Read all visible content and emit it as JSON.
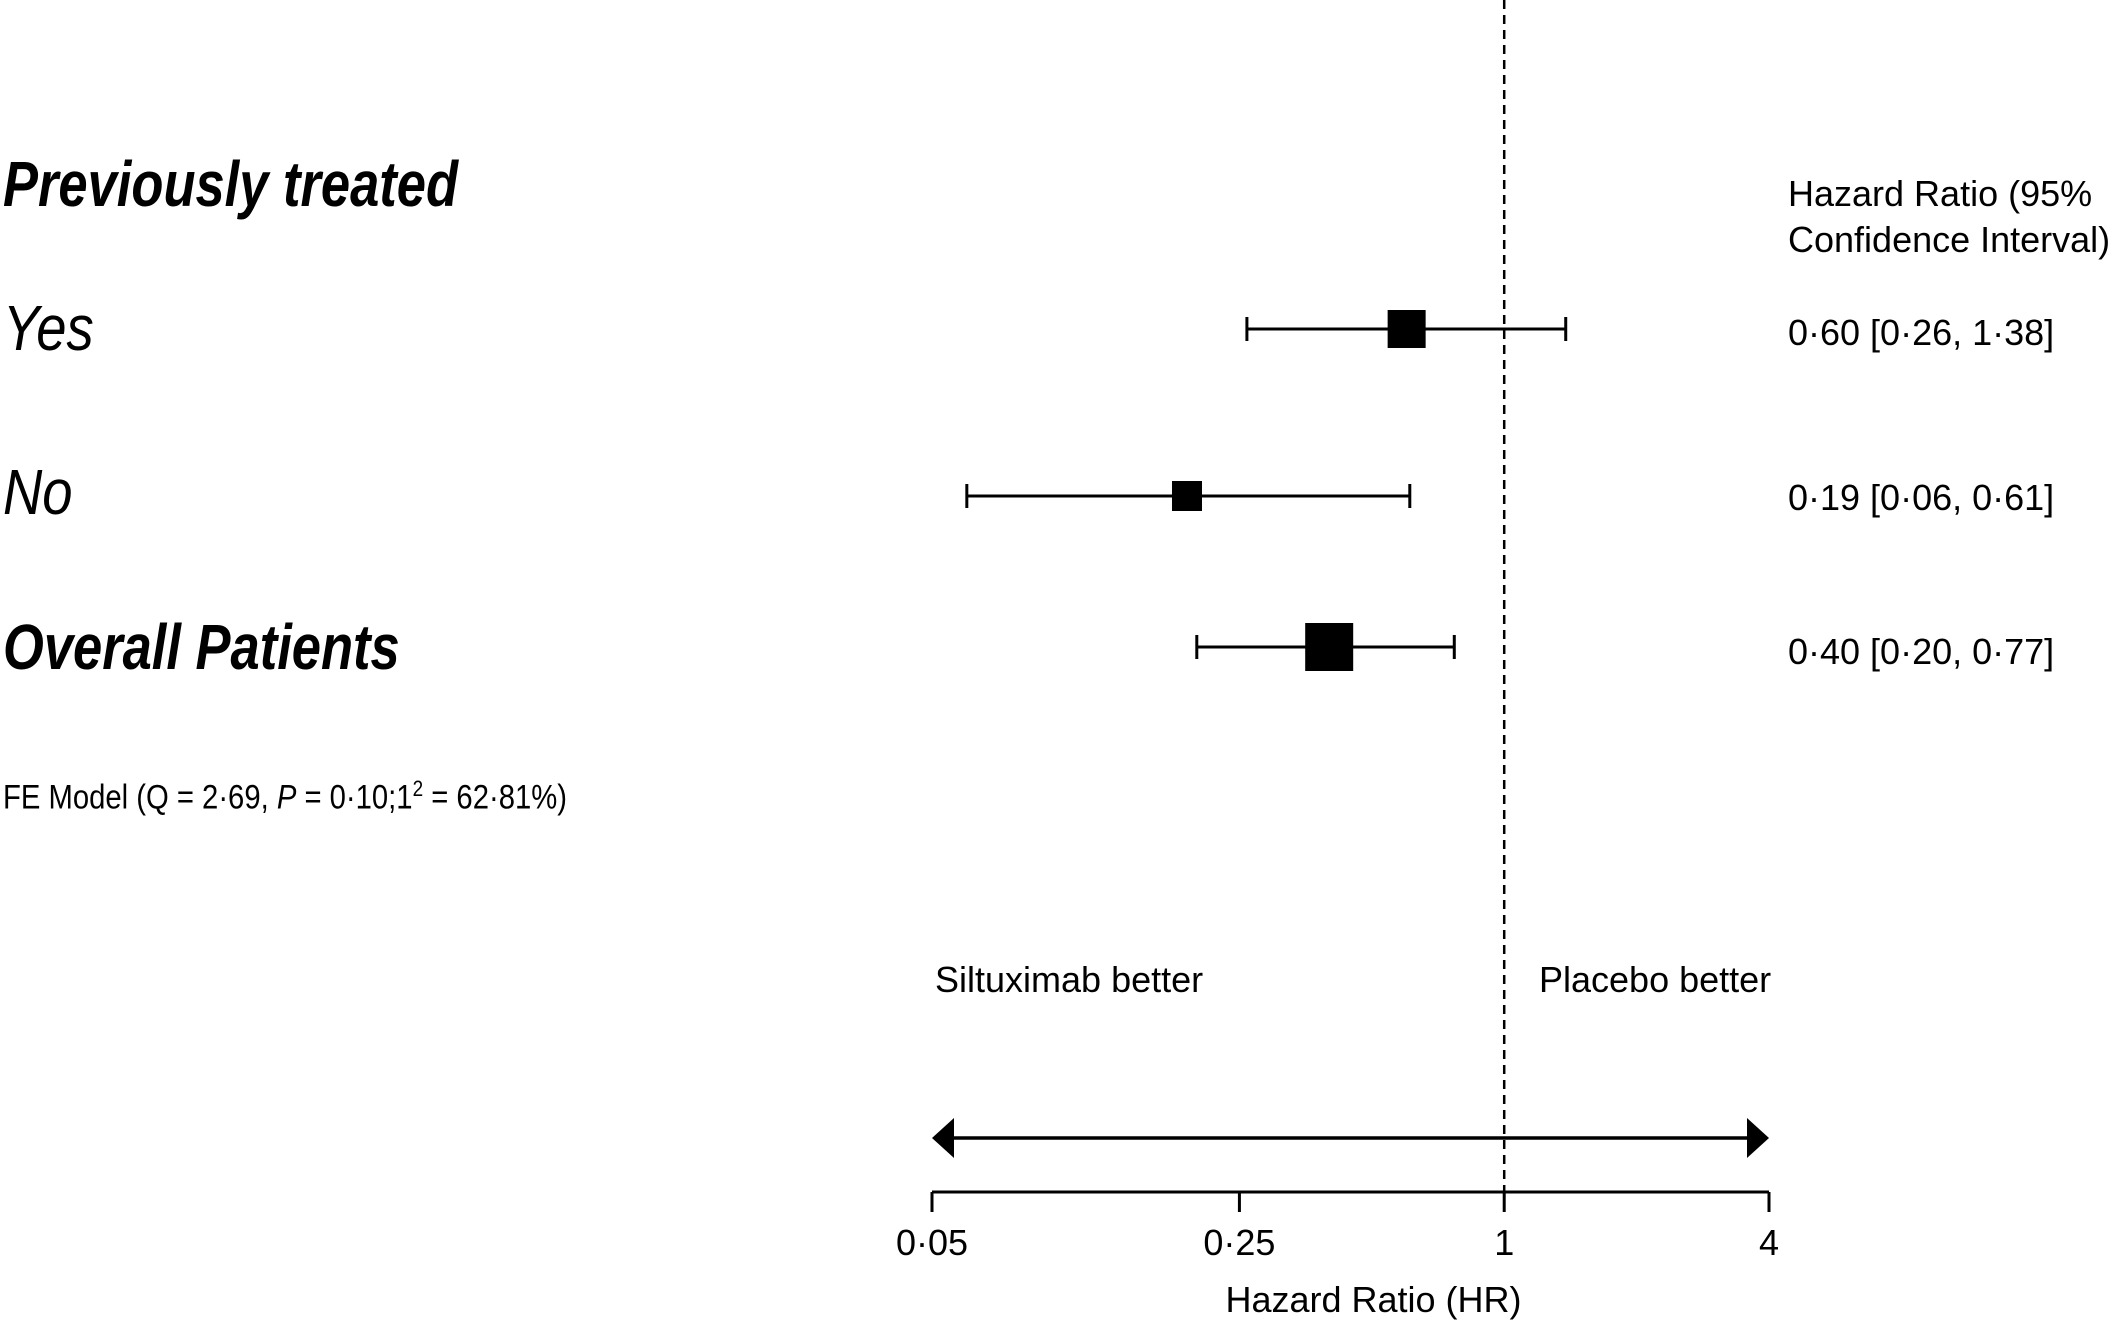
{
  "chart_data": {
    "type": "forest",
    "rows": [
      {
        "label": "Yes",
        "hr": 0.6,
        "ci": [
          0.26,
          1.38
        ],
        "ci_text": "0·60 [0·26, 1·38]",
        "weight": 0.55
      },
      {
        "label": "No",
        "hr": 0.19,
        "ci": [
          0.06,
          0.61
        ],
        "ci_text": "0·19 [0·06, 0·61]",
        "weight": 0.35
      },
      {
        "label": "Overall Patients",
        "hr": 0.4,
        "ci": [
          0.2,
          0.77
        ],
        "ci_text": "0·40 [0·20, 0·77]",
        "weight": 0.8,
        "summary": true
      }
    ],
    "group_header": "Previously treated",
    "column_header": [
      "Hazard Ratio (95%",
      "Confidence Interval)"
    ],
    "model_text": {
      "prefix": "FE Model (Q = 2·69, ",
      "p_symbol": "P",
      "middle": " = 0·10;1",
      "superscript": "2",
      "suffix": " = 62·81%)"
    },
    "xaxis": {
      "scale": "log",
      "ticks": [
        0.05,
        0.25,
        1,
        4
      ],
      "tick_labels": [
        "0·05",
        "0·25",
        "1",
        "4"
      ],
      "xlim": [
        0.05,
        4
      ],
      "label": "Hazard Ratio (HR)"
    },
    "reference_line": 1,
    "direction_labels": {
      "left": "Siltuximab better",
      "right": "Placebo better"
    }
  }
}
